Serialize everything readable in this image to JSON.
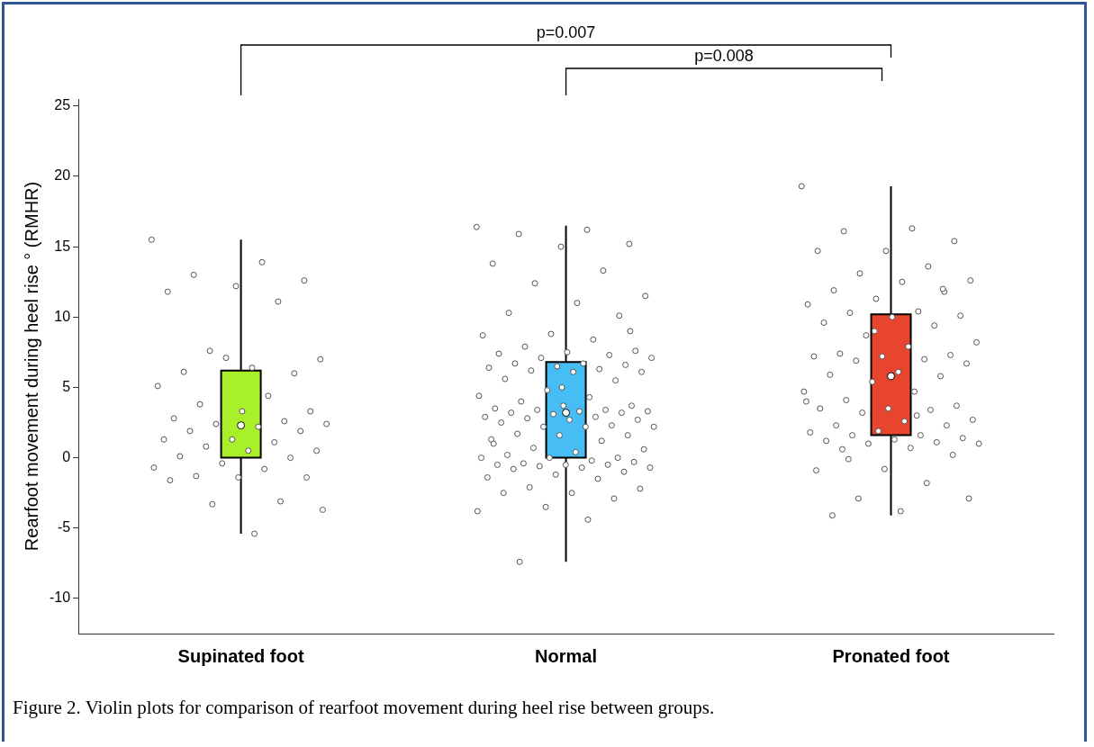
{
  "chart_data": {
    "type": "box",
    "ylabel": "Rearfoot movement during heel rise ° (RMHR)",
    "categories": [
      "Supinated foot",
      "Normal",
      "Pronated foot"
    ],
    "colors": [
      "#a8f02a",
      "#46bdf5",
      "#e8452f"
    ],
    "boxes": [
      {
        "low": -5.4,
        "q1": 0.0,
        "median": 2.3,
        "q3": 6.2,
        "high": 15.5
      },
      {
        "low": -7.4,
        "q1": 0.0,
        "median": 3.2,
        "q3": 6.8,
        "high": 16.5
      },
      {
        "low": -4.1,
        "q1": 1.6,
        "median": 5.8,
        "q3": 10.2,
        "high": 19.3
      }
    ],
    "series": [
      {
        "type": "scatter",
        "color": "#ffffff",
        "x": [
          "Supinated foot",
          "Supinated foot",
          "Supinated foot",
          "Supinated foot",
          "Supinated foot",
          "Supinated foot",
          "Supinated foot",
          "Supinated foot",
          "Supinated foot",
          "Supinated foot",
          "Supinated foot",
          "Supinated foot",
          "Supinated foot",
          "Supinated foot",
          "Supinated foot",
          "Supinated foot",
          "Supinated foot",
          "Supinated foot",
          "Supinated foot",
          "Supinated foot",
          "Supinated foot",
          "Supinated foot",
          "Supinated foot",
          "Supinated foot",
          "Supinated foot",
          "Supinated foot",
          "Supinated foot",
          "Supinated foot",
          "Supinated foot",
          "Supinated foot",
          "Supinated foot",
          "Supinated foot",
          "Supinated foot",
          "Supinated foot",
          "Supinated foot",
          "Supinated foot",
          "Supinated foot",
          "Supinated foot",
          "Supinated foot",
          "Supinated foot",
          "Supinated foot",
          "Supinated foot",
          "Supinated foot",
          "Supinated foot"
        ],
        "values": [
          15.5,
          13.9,
          13.0,
          12.6,
          12.2,
          11.8,
          11.1,
          7.6,
          7.0,
          6.4,
          6.1,
          6.0,
          7.1,
          5.1,
          4.4,
          3.8,
          3.3,
          3.3,
          2.8,
          2.6,
          2.4,
          2.4,
          2.2,
          1.9,
          1.9,
          1.3,
          1.3,
          1.1,
          0.8,
          0.5,
          0.5,
          0.1,
          0.0,
          -0.4,
          -0.7,
          -0.8,
          -1.3,
          -1.4,
          -1.4,
          -1.6,
          -3.1,
          -3.3,
          -3.7,
          -5.4
        ]
      },
      {
        "type": "scatter",
        "color": "#ffffff",
        "x": [
          "Normal",
          "Normal",
          "Normal",
          "Normal",
          "Normal",
          "Normal",
          "Normal",
          "Normal",
          "Normal",
          "Normal",
          "Normal",
          "Normal",
          "Normal",
          "Normal",
          "Normal",
          "Normal",
          "Normal",
          "Normal",
          "Normal",
          "Normal",
          "Normal",
          "Normal",
          "Normal",
          "Normal",
          "Normal",
          "Normal",
          "Normal",
          "Normal",
          "Normal",
          "Normal",
          "Normal",
          "Normal",
          "Normal",
          "Normal",
          "Normal",
          "Normal",
          "Normal",
          "Normal",
          "Normal",
          "Normal",
          "Normal",
          "Normal",
          "Normal",
          "Normal",
          "Normal",
          "Normal",
          "Normal",
          "Normal",
          "Normal",
          "Normal",
          "Normal",
          "Normal",
          "Normal",
          "Normal",
          "Normal",
          "Normal",
          "Normal",
          "Normal",
          "Normal",
          "Normal",
          "Normal",
          "Normal",
          "Normal",
          "Normal",
          "Normal",
          "Normal",
          "Normal",
          "Normal",
          "Normal",
          "Normal",
          "Normal",
          "Normal",
          "Normal",
          "Normal",
          "Normal",
          "Normal",
          "Normal",
          "Normal",
          "Normal",
          "Normal",
          "Normal",
          "Normal",
          "Normal",
          "Normal",
          "Normal",
          "Normal",
          "Normal",
          "Normal",
          "Normal",
          "Normal",
          "Normal",
          "Normal",
          "Normal",
          "Normal",
          "Normal"
        ],
        "values": [
          16.4,
          16.2,
          15.9,
          15.2,
          15.0,
          13.8,
          13.3,
          12.4,
          11.5,
          11.0,
          10.3,
          10.1,
          8.8,
          8.7,
          8.4,
          7.9,
          7.6,
          7.5,
          7.4,
          7.3,
          7.1,
          7.1,
          6.7,
          6.7,
          6.6,
          6.5,
          6.4,
          6.3,
          6.2,
          6.1,
          6.1,
          5.6,
          5.5,
          4.8,
          4.4,
          4.3,
          4.0,
          3.7,
          3.7,
          3.5,
          3.4,
          3.4,
          3.3,
          3.3,
          3.2,
          3.2,
          3.1,
          2.9,
          2.9,
          2.8,
          2.7,
          2.7,
          2.5,
          2.3,
          2.2,
          2.2,
          2.2,
          1.7,
          1.6,
          1.6,
          1.3,
          1.2,
          0.7,
          0.6,
          0.4,
          0.2,
          0.0,
          0.0,
          0.0,
          -0.2,
          -0.4,
          -0.3,
          -0.5,
          -0.5,
          -0.5,
          -0.6,
          -0.7,
          -0.7,
          -0.8,
          -1.0,
          -1.2,
          -1.4,
          -1.5,
          -2.1,
          -2.2,
          -2.5,
          -2.5,
          -2.9,
          -3.5,
          -3.8,
          -4.4,
          -7.4,
          9.0,
          5.0,
          1.0
        ]
      },
      {
        "type": "scatter",
        "color": "#ffffff",
        "x": [
          "Pronated foot",
          "Pronated foot",
          "Pronated foot",
          "Pronated foot",
          "Pronated foot",
          "Pronated foot",
          "Pronated foot",
          "Pronated foot",
          "Pronated foot",
          "Pronated foot",
          "Pronated foot",
          "Pronated foot",
          "Pronated foot",
          "Pronated foot",
          "Pronated foot",
          "Pronated foot",
          "Pronated foot",
          "Pronated foot",
          "Pronated foot",
          "Pronated foot",
          "Pronated foot",
          "Pronated foot",
          "Pronated foot",
          "Pronated foot",
          "Pronated foot",
          "Pronated foot",
          "Pronated foot",
          "Pronated foot",
          "Pronated foot",
          "Pronated foot",
          "Pronated foot",
          "Pronated foot",
          "Pronated foot",
          "Pronated foot",
          "Pronated foot",
          "Pronated foot",
          "Pronated foot",
          "Pronated foot",
          "Pronated foot",
          "Pronated foot",
          "Pronated foot",
          "Pronated foot",
          "Pronated foot",
          "Pronated foot",
          "Pronated foot",
          "Pronated foot",
          "Pronated foot",
          "Pronated foot",
          "Pronated foot",
          "Pronated foot",
          "Pronated foot",
          "Pronated foot",
          "Pronated foot",
          "Pronated foot",
          "Pronated foot",
          "Pronated foot",
          "Pronated foot",
          "Pronated foot",
          "Pronated foot",
          "Pronated foot",
          "Pronated foot",
          "Pronated foot",
          "Pronated foot",
          "Pronated foot",
          "Pronated foot",
          "Pronated foot",
          "Pronated foot",
          "Pronated foot",
          "Pronated foot",
          "Pronated foot",
          "Pronated foot"
        ],
        "values": [
          19.3,
          16.3,
          16.1,
          15.4,
          14.7,
          14.7,
          13.6,
          13.1,
          12.6,
          12.5,
          11.9,
          11.8,
          11.3,
          10.9,
          10.4,
          10.3,
          10.1,
          10.0,
          9.6,
          9.4,
          8.7,
          8.2,
          7.9,
          7.4,
          7.3,
          7.2,
          7.2,
          7.0,
          6.9,
          6.7,
          6.1,
          5.9,
          5.8,
          5.4,
          4.7,
          4.7,
          4.1,
          3.7,
          3.5,
          3.5,
          3.4,
          3.2,
          2.7,
          2.6,
          2.3,
          2.3,
          1.9,
          1.8,
          1.6,
          1.6,
          1.4,
          1.3,
          1.2,
          1.1,
          1.0,
          1.0,
          0.7,
          0.6,
          0.2,
          -0.8,
          -0.9,
          -1.8,
          -2.9,
          -2.9,
          -3.8,
          -4.1,
          12.0,
          9.0,
          4.0,
          3.0,
          -0.1
        ]
      }
    ],
    "ylim": [
      -12.5,
      25.5
    ],
    "yticks": [
      -10,
      -5,
      0,
      5,
      10,
      15,
      20,
      25
    ],
    "grid": false,
    "legend": false,
    "annotations": [
      "p=0.007",
      "p=0.008",
      "Figure 2. Violin plots for comparison of rearfoot movement during heel rise between groups."
    ]
  }
}
